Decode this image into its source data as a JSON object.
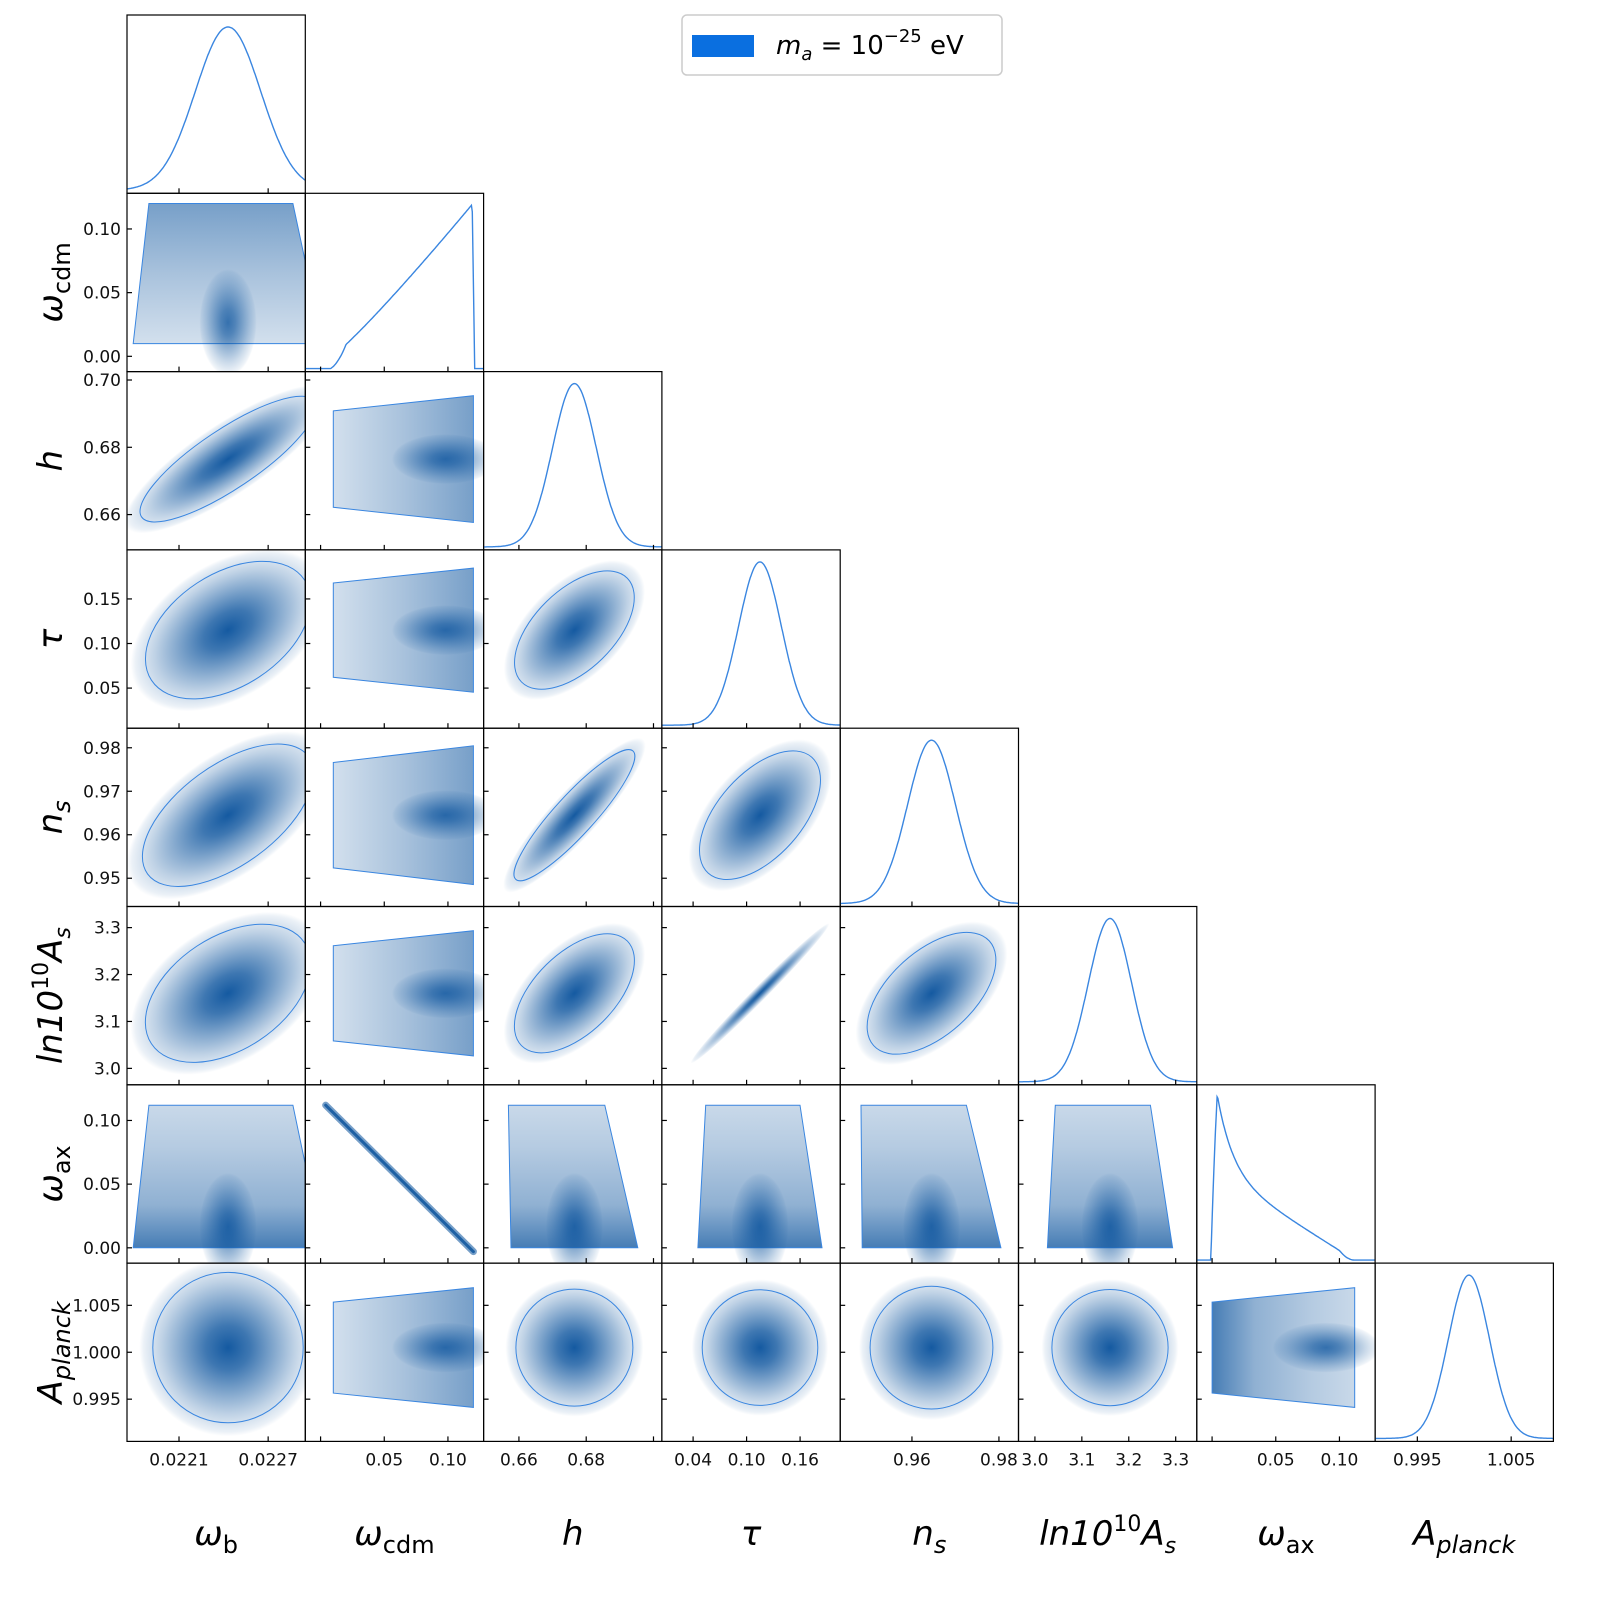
{
  "chart_data": {
    "type": "corner",
    "legend": {
      "color": "#0a6fe0",
      "label_html": "m_a = 10^{-25} eV",
      "parts": {
        "m": "m",
        "a": "a",
        "eq": " = 10",
        "exp": "−25",
        "unit": " eV"
      },
      "placement": "top-center"
    },
    "colors": {
      "line": "#3a86e0",
      "density": "#08519c",
      "frame": "#000000"
    },
    "params": [
      {
        "id": "wb",
        "label": "ω",
        "sub": "b",
        "range": [
          0.02175,
          0.02295
        ],
        "ticks": [
          0.0221,
          0.0227
        ],
        "tick_labels": [
          "0.0221",
          "0.0227"
        ],
        "mean": 0.02243,
        "sd": 0.00022
      },
      {
        "id": "wcdm",
        "label": "ω",
        "sub": "cdm",
        "range": [
          -0.012,
          0.128
        ],
        "ticks": [
          0.0,
          0.05,
          0.1
        ],
        "tick_labels": [
          "0.00",
          "0.05",
          "0.10"
        ],
        "xtick_labels": [
          "",
          "0.05",
          "0.10"
        ],
        "lo": 0.01,
        "hi": 0.12,
        "shape": "ramp"
      },
      {
        "id": "h",
        "label": "h",
        "sub": "",
        "range": [
          0.6495,
          0.7025
        ],
        "ticks": [
          0.66,
          0.68,
          0.7
        ],
        "tick_labels": [
          "0.66",
          "0.68",
          "0.70"
        ],
        "xtick_labels": [
          "0.66",
          "0.68",
          ""
        ],
        "mean": 0.6765,
        "sd": 0.0065
      },
      {
        "id": "tau",
        "label": "τ",
        "sub": "",
        "range": [
          0.005,
          0.205
        ],
        "ticks": [
          0.05,
          0.1,
          0.15
        ],
        "xticks": [
          0.04,
          0.1,
          0.16
        ],
        "tick_labels": [
          "0.05",
          "0.10",
          "0.15"
        ],
        "xtick_labels": [
          "0.04",
          "0.10",
          "0.16"
        ],
        "mean": 0.115,
        "sd": 0.024
      },
      {
        "id": "ns",
        "label": "n",
        "sub": "s",
        "range": [
          0.9435,
          0.9845
        ],
        "ticks": [
          0.95,
          0.96,
          0.97,
          0.98
        ],
        "tick_labels": [
          "0.95",
          "0.96",
          "0.97",
          "0.98"
        ],
        "xticks": [
          0.96,
          0.98
        ],
        "xtick_labels": [
          "0.96",
          "0.98"
        ],
        "mean": 0.9645,
        "sd": 0.0055
      },
      {
        "id": "As",
        "label": "ln10",
        "sup": "10",
        "sub": "s",
        "range": [
          2.965,
          3.345
        ],
        "ticks": [
          3.0,
          3.1,
          3.2,
          3.3
        ],
        "tick_labels": [
          "3.0",
          "3.1",
          "3.2",
          "3.3"
        ],
        "mean": 3.16,
        "sd": 0.046
      },
      {
        "id": "wax",
        "label": "ω",
        "sub": "ax",
        "range": [
          -0.012,
          0.128
        ],
        "ticks": [
          0.0,
          0.05,
          0.1
        ],
        "tick_labels": [
          "0.00",
          "0.05",
          "0.10"
        ],
        "xtick_labels": [
          "",
          "0.05",
          "0.10"
        ],
        "lo": 0.0,
        "hi": 0.112,
        "shape": "decay"
      },
      {
        "id": "Ap",
        "label": "A",
        "sub": "planck",
        "range": [
          0.9905,
          1.0095
        ],
        "ticks": [
          0.995,
          1.0,
          1.005
        ],
        "tick_labels": [
          "0.995",
          "1.000",
          "1.005"
        ],
        "xticks": [
          0.995,
          1.005
        ],
        "xtick_labels": [
          "0.995",
          "1.005"
        ],
        "mean": 1.0005,
        "sd": 0.0022
      }
    ],
    "axis_labels": [
      "ωb",
      "ωcdm",
      "h",
      "τ",
      "ns",
      "ln10^10As",
      "ωax",
      "Aplanck"
    ],
    "correlations": {
      "h|wb": 0.85,
      "tau|wb": 0.45,
      "tau|h": 0.55,
      "ns|wb": 0.6,
      "ns|h": 0.9,
      "ns|tau": 0.55,
      "As|wb": 0.45,
      "As|h": 0.55,
      "As|tau": 0.99,
      "As|ns": 0.55,
      "wax|wcdm": -1.0
    },
    "grid": false
  }
}
